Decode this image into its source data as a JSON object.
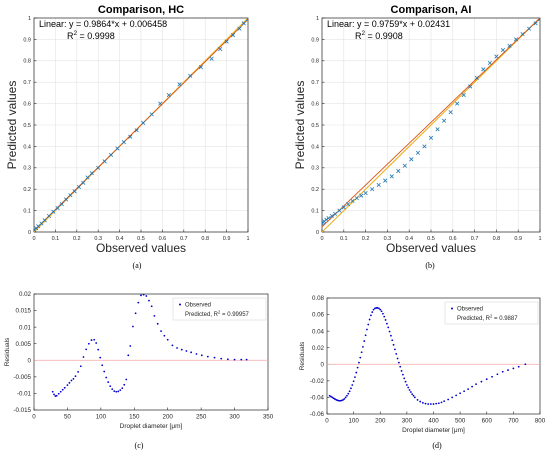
{
  "chart_data": [
    {
      "panel": "a",
      "caption": "(a)",
      "type": "scatter",
      "title": "Comparison, HC",
      "xlabel": "Observed values",
      "ylabel": "Predicted values",
      "xlim": [
        0,
        1
      ],
      "ylim": [
        0,
        1
      ],
      "xticks": [
        "0",
        "0.1",
        "0.2",
        "0.3",
        "0.4",
        "0.5",
        "0.6",
        "0.7",
        "0.8",
        "0.9",
        "1"
      ],
      "yticks": [
        "0",
        "0.1",
        "0.2",
        "0.3",
        "0.4",
        "0.5",
        "0.6",
        "0.7",
        "0.8",
        "0.9",
        "1"
      ],
      "grid": true,
      "annotation": {
        "fit_text": "Linear:  y = 0.9864*x + 0.006458",
        "r2_label": "R",
        "r2_sup": "2",
        "r2_value": " = 0.9998"
      },
      "fit": {
        "slope": 0.9864,
        "intercept": 0.006458
      },
      "series": [
        {
          "marker": "x",
          "color": "#1f77b4",
          "x": [
            0.0,
            0.01,
            0.02,
            0.035,
            0.05,
            0.07,
            0.09,
            0.11,
            0.13,
            0.15,
            0.17,
            0.19,
            0.21,
            0.23,
            0.25,
            0.27,
            0.3,
            0.33,
            0.36,
            0.39,
            0.42,
            0.45,
            0.48,
            0.51,
            0.55,
            0.59,
            0.63,
            0.68,
            0.73,
            0.78,
            0.83,
            0.87,
            0.9,
            0.93,
            0.96,
            0.98,
            1.0
          ],
          "y": [
            0.01,
            0.018,
            0.027,
            0.04,
            0.055,
            0.075,
            0.095,
            0.112,
            0.13,
            0.152,
            0.172,
            0.19,
            0.21,
            0.23,
            0.255,
            0.275,
            0.3,
            0.33,
            0.36,
            0.39,
            0.42,
            0.445,
            0.475,
            0.51,
            0.55,
            0.6,
            0.64,
            0.69,
            0.73,
            0.77,
            0.81,
            0.855,
            0.89,
            0.92,
            0.95,
            0.975,
            0.995
          ]
        }
      ]
    },
    {
      "panel": "b",
      "caption": "(b)",
      "type": "scatter",
      "title": "Comparison, AI",
      "xlabel": "Observed values",
      "ylabel": "Predicted values",
      "xlim": [
        0,
        1
      ],
      "ylim": [
        0,
        1
      ],
      "xticks": [
        "0",
        "0.1",
        "0.2",
        "0.3",
        "0.4",
        "0.5",
        "0.6",
        "0.7",
        "0.8",
        "0.9",
        "1"
      ],
      "yticks": [
        "0",
        "0.1",
        "0.2",
        "0.3",
        "0.4",
        "0.5",
        "0.6",
        "0.7",
        "0.8",
        "0.9",
        "1"
      ],
      "grid": true,
      "annotation": {
        "fit_text": "Linear:  y = 0.9759*x + 0.02431",
        "r2_label": "R",
        "r2_sup": "2",
        "r2_value": " = 0.9908"
      },
      "fit": {
        "slope": 0.9759,
        "intercept": 0.02431
      },
      "series": [
        {
          "marker": "x",
          "color": "#1f77b4",
          "x": [
            0.0,
            0.005,
            0.01,
            0.02,
            0.03,
            0.045,
            0.06,
            0.08,
            0.1,
            0.12,
            0.14,
            0.16,
            0.18,
            0.2,
            0.23,
            0.26,
            0.29,
            0.32,
            0.35,
            0.38,
            0.41,
            0.44,
            0.47,
            0.5,
            0.53,
            0.56,
            0.59,
            0.62,
            0.65,
            0.68,
            0.71,
            0.74,
            0.77,
            0.8,
            0.83,
            0.86,
            0.89,
            0.92,
            0.95,
            0.98,
            1.0
          ],
          "y": [
            0.04,
            0.045,
            0.05,
            0.058,
            0.065,
            0.075,
            0.085,
            0.1,
            0.115,
            0.13,
            0.145,
            0.158,
            0.17,
            0.182,
            0.2,
            0.22,
            0.24,
            0.26,
            0.285,
            0.31,
            0.34,
            0.37,
            0.4,
            0.44,
            0.48,
            0.52,
            0.56,
            0.6,
            0.64,
            0.68,
            0.72,
            0.76,
            0.79,
            0.82,
            0.85,
            0.87,
            0.9,
            0.925,
            0.95,
            0.975,
            0.995
          ]
        }
      ]
    },
    {
      "panel": "c",
      "caption": "(c)",
      "type": "scatter",
      "title": "",
      "xlabel": "Droplet diameter [μm]",
      "ylabel": "Residuals",
      "xlim": [
        0,
        350
      ],
      "ylim": [
        -0.015,
        0.02
      ],
      "xticks": [
        "0",
        "50",
        "100",
        "150",
        "200",
        "250",
        "300",
        "350"
      ],
      "yticks": [
        "-0.015",
        "-0.01",
        "-0.005",
        "0",
        "0.005",
        "0.01",
        "0.015",
        "0.02"
      ],
      "grid": false,
      "legend": {
        "position": "top-right",
        "observed": "Observed",
        "predicted_label": "Predicted, R",
        "predicted_sup": "2",
        "predicted_value": " = 0.99957"
      },
      "reference_line": {
        "y": 0,
        "color": "#f4a6a6"
      },
      "series": [
        {
          "name": "Observed",
          "marker": "dot",
          "color": "#0000cc",
          "x": [
            28,
            30,
            32,
            34,
            37,
            40,
            43,
            46,
            50,
            53,
            56,
            59,
            62,
            66,
            70,
            74,
            78,
            82,
            86,
            90,
            93,
            96,
            99,
            102,
            105,
            108,
            111,
            114,
            117,
            120,
            123,
            126,
            129,
            132,
            135,
            138,
            141,
            144,
            148,
            152,
            156,
            160,
            164,
            168,
            172,
            176,
            180,
            185,
            190,
            195,
            200,
            207,
            214,
            221,
            228,
            235,
            243,
            251,
            260,
            270,
            280,
            290,
            300,
            310,
            318
          ],
          "y": [
            -0.0095,
            -0.0103,
            -0.0108,
            -0.0107,
            -0.0101,
            -0.0095,
            -0.0089,
            -0.0083,
            -0.0075,
            -0.0068,
            -0.0061,
            -0.0056,
            -0.0048,
            -0.0035,
            -0.0018,
            0.001,
            0.0033,
            0.005,
            0.0061,
            0.0062,
            0.0052,
            0.0032,
            0.0008,
            -0.0015,
            -0.0034,
            -0.0052,
            -0.0066,
            -0.0078,
            -0.0087,
            -0.0093,
            -0.0095,
            -0.0094,
            -0.009,
            -0.0084,
            -0.0074,
            -0.0058,
            0.0015,
            0.0043,
            0.0102,
            0.0142,
            0.0174,
            0.0196,
            0.0198,
            0.0194,
            0.018,
            0.0163,
            0.0134,
            0.011,
            0.0088,
            0.0074,
            0.0062,
            0.0045,
            0.0037,
            0.0032,
            0.0028,
            0.0024,
            0.0019,
            0.0015,
            0.0011,
            0.0008,
            0.0005,
            0.0003,
            0.0002,
            0.0002,
            0.0002
          ]
        }
      ]
    },
    {
      "panel": "d",
      "caption": "(d)",
      "type": "scatter",
      "title": "",
      "xlabel": "Droplet diameter [μm]",
      "ylabel": "Residuals",
      "xlim": [
        0,
        800
      ],
      "ylim": [
        -0.06,
        0.08
      ],
      "xticks": [
        "0",
        "100",
        "200",
        "300",
        "400",
        "500",
        "600",
        "700",
        "800"
      ],
      "yticks": [
        "-0.06",
        "-0.04",
        "-0.02",
        "0",
        "0.02",
        "0.04",
        "0.06",
        "0.08"
      ],
      "grid": false,
      "legend": {
        "position": "top-right",
        "observed": "Observed",
        "predicted_label": "Predicted, R",
        "predicted_sup": "2",
        "predicted_value": " = 0.9887"
      },
      "reference_line": {
        "y": 0,
        "color": "#f4a6a6"
      },
      "series": [
        {
          "name": "Observed",
          "marker": "dot",
          "color": "#0000cc",
          "x": [
            10,
            15,
            20,
            25,
            30,
            35,
            40,
            45,
            50,
            55,
            60,
            65,
            70,
            75,
            80,
            85,
            90,
            95,
            100,
            105,
            110,
            115,
            120,
            125,
            130,
            135,
            140,
            145,
            150,
            155,
            160,
            165,
            170,
            175,
            180,
            185,
            190,
            195,
            200,
            205,
            210,
            215,
            220,
            225,
            230,
            235,
            240,
            245,
            250,
            255,
            260,
            265,
            270,
            275,
            280,
            285,
            290,
            295,
            300,
            305,
            310,
            315,
            320,
            325,
            330,
            340,
            350,
            360,
            370,
            380,
            390,
            400,
            410,
            420,
            430,
            440,
            455,
            470,
            485,
            500,
            515,
            530,
            545,
            560,
            580,
            600,
            620,
            640,
            660,
            680,
            700,
            720,
            745
          ],
          "y": [
            -0.038,
            -0.039,
            -0.04,
            -0.041,
            -0.042,
            -0.043,
            -0.0435,
            -0.044,
            -0.044,
            -0.0437,
            -0.043,
            -0.0418,
            -0.04,
            -0.038,
            -0.0355,
            -0.0325,
            -0.029,
            -0.025,
            -0.0205,
            -0.0155,
            -0.01,
            -0.004,
            0.002,
            0.008,
            0.0145,
            0.021,
            0.028,
            0.035,
            0.042,
            0.048,
            0.054,
            0.059,
            0.063,
            0.066,
            0.0675,
            0.068,
            0.068,
            0.0675,
            0.066,
            0.064,
            0.061,
            0.0575,
            0.0535,
            0.049,
            0.0445,
            0.0395,
            0.0345,
            0.029,
            0.0235,
            0.018,
            0.0125,
            0.007,
            0.002,
            -0.003,
            -0.008,
            -0.0125,
            -0.017,
            -0.021,
            -0.025,
            -0.028,
            -0.031,
            -0.0335,
            -0.036,
            -0.038,
            -0.04,
            -0.043,
            -0.045,
            -0.0465,
            -0.0475,
            -0.048,
            -0.048,
            -0.048,
            -0.0475,
            -0.047,
            -0.046,
            -0.0445,
            -0.0425,
            -0.04,
            -0.0375,
            -0.035,
            -0.0325,
            -0.03,
            -0.027,
            -0.024,
            -0.021,
            -0.018,
            -0.015,
            -0.012,
            -0.009,
            -0.007,
            -0.005,
            -0.003,
            0.0
          ]
        }
      ]
    }
  ]
}
